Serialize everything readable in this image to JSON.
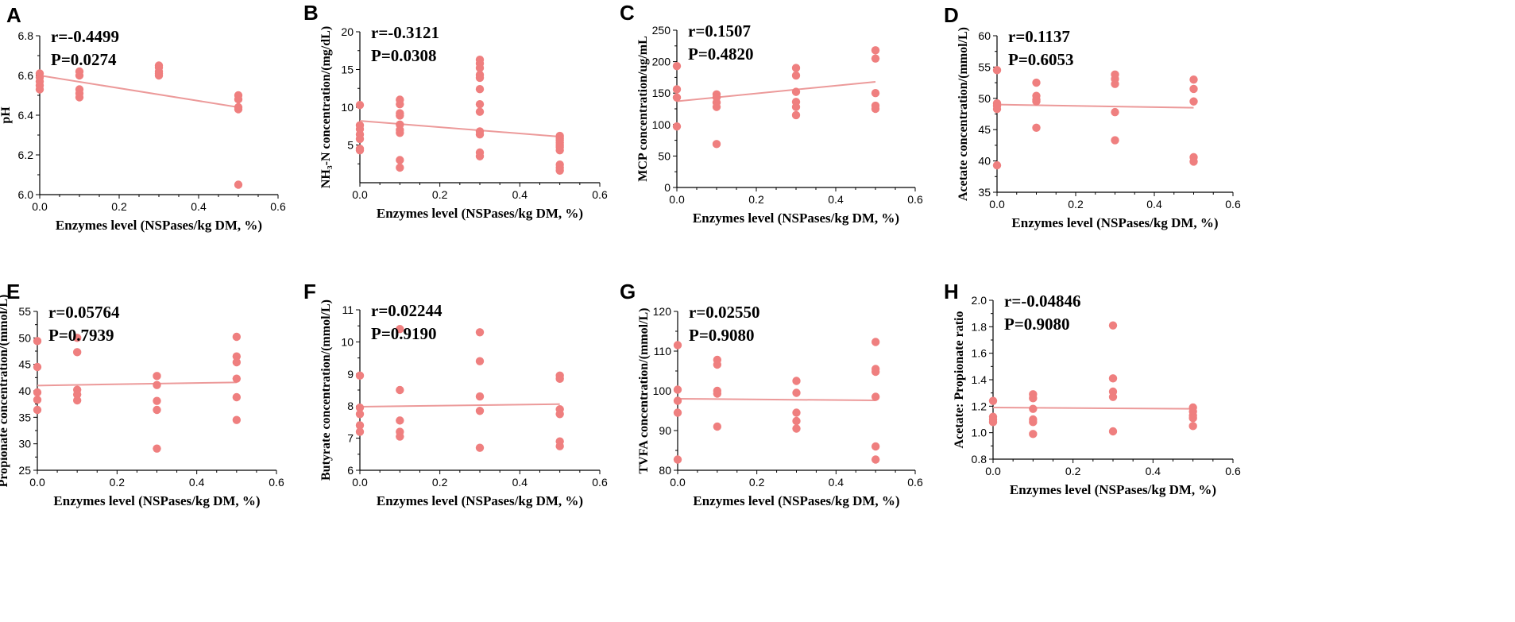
{
  "colors": {
    "point": "#ef7f7f",
    "fit_line": "#ec9a9a",
    "axis": "#000000"
  },
  "chart_data": [
    {
      "letter": "A",
      "type": "scatter",
      "ylabel": "pH",
      "xlabel": "Enzymes level (NSPases/kg DM, %)",
      "r_text": "r=-0.4499",
      "p_text": "P=0.0274",
      "xlim": [
        0,
        0.6
      ],
      "ylim": [
        6.0,
        6.8
      ],
      "xticks": [
        0.0,
        0.2,
        0.4,
        0.6
      ],
      "xtick_labels": [
        "0.0",
        "0.2",
        "0.4",
        "0.6"
      ],
      "yticks": [
        6.0,
        6.2,
        6.4,
        6.6,
        6.8
      ],
      "ytick_labels": [
        "6.0",
        "6.2",
        "6.4",
        "6.6",
        "6.8"
      ],
      "points": [
        [
          0,
          6.61
        ],
        [
          0,
          6.59
        ],
        [
          0,
          6.57
        ],
        [
          0,
          6.55
        ],
        [
          0,
          6.53
        ],
        [
          0.1,
          6.62
        ],
        [
          0.1,
          6.6
        ],
        [
          0.1,
          6.53
        ],
        [
          0.1,
          6.51
        ],
        [
          0.1,
          6.49
        ],
        [
          0.3,
          6.65
        ],
        [
          0.3,
          6.64
        ],
        [
          0.3,
          6.62
        ],
        [
          0.3,
          6.61
        ],
        [
          0.3,
          6.6
        ],
        [
          0.5,
          6.5
        ],
        [
          0.5,
          6.48
        ],
        [
          0.5,
          6.44
        ],
        [
          0.5,
          6.43
        ],
        [
          0.5,
          6.05
        ]
      ],
      "fit": [
        [
          0,
          6.6
        ],
        [
          0.5,
          6.44
        ]
      ]
    },
    {
      "letter": "B",
      "type": "scatter",
      "ylabel": "NH₃-N concentration/(mg/dL)",
      "xlabel": "Enzymes level (NSPases/kg DM, %)",
      "r_text": "r=-0.3121",
      "p_text": "P=0.0308",
      "xlim": [
        0,
        0.6
      ],
      "ylim": [
        0,
        20
      ],
      "xticks": [
        0.0,
        0.2,
        0.4,
        0.6
      ],
      "xtick_labels": [
        "0.0",
        "0.2",
        "0.4",
        "0.6"
      ],
      "yticks": [
        5,
        10,
        15,
        20
      ],
      "ytick_labels": [
        "5",
        "10",
        "15",
        "20"
      ],
      "points": [
        [
          0,
          10.3
        ],
        [
          0,
          7.6
        ],
        [
          0,
          7.1
        ],
        [
          0,
          6.4
        ],
        [
          0,
          5.8
        ],
        [
          0,
          4.5
        ],
        [
          0,
          4.3
        ],
        [
          0.1,
          11.0
        ],
        [
          0.1,
          10.4
        ],
        [
          0.1,
          9.2
        ],
        [
          0.1,
          8.9
        ],
        [
          0.1,
          7.7
        ],
        [
          0.1,
          7.0
        ],
        [
          0.1,
          6.6
        ],
        [
          0.1,
          3.0
        ],
        [
          0.1,
          2.0
        ],
        [
          0.3,
          16.3
        ],
        [
          0.3,
          15.8
        ],
        [
          0.3,
          15.2
        ],
        [
          0.3,
          14.3
        ],
        [
          0.3,
          13.9
        ],
        [
          0.3,
          12.4
        ],
        [
          0.3,
          10.4
        ],
        [
          0.3,
          9.4
        ],
        [
          0.3,
          6.8
        ],
        [
          0.3,
          6.4
        ],
        [
          0.3,
          4.0
        ],
        [
          0.3,
          3.5
        ],
        [
          0.5,
          6.2
        ],
        [
          0.5,
          5.9
        ],
        [
          0.5,
          5.6
        ],
        [
          0.5,
          5.3
        ],
        [
          0.5,
          5.0
        ],
        [
          0.5,
          4.7
        ],
        [
          0.5,
          4.3
        ],
        [
          0.5,
          2.4
        ],
        [
          0.5,
          2.0
        ],
        [
          0.5,
          1.6
        ]
      ],
      "fit": [
        [
          0,
          8.2
        ],
        [
          0.5,
          6.1
        ]
      ]
    },
    {
      "letter": "C",
      "type": "scatter",
      "ylabel": "MCP concentration/ug/mL",
      "xlabel": "Enzymes level (NSPases/kg DM, %)",
      "r_text": "r=0.1507",
      "p_text": "P=0.4820",
      "xlim": [
        0,
        0.6
      ],
      "ylim": [
        0,
        250
      ],
      "xticks": [
        0.0,
        0.2,
        0.4,
        0.6
      ],
      "xtick_labels": [
        "0.0",
        "0.2",
        "0.4",
        "0.6"
      ],
      "yticks": [
        0,
        50,
        100,
        150,
        200,
        250
      ],
      "ytick_labels": [
        "0",
        "50",
        "100",
        "150",
        "200",
        "250"
      ],
      "points": [
        [
          0,
          193
        ],
        [
          0,
          156
        ],
        [
          0,
          143
        ],
        [
          0,
          97
        ],
        [
          0.1,
          148
        ],
        [
          0.1,
          143
        ],
        [
          0.1,
          135
        ],
        [
          0.1,
          128
        ],
        [
          0.1,
          69
        ],
        [
          0.3,
          190
        ],
        [
          0.3,
          178
        ],
        [
          0.3,
          152
        ],
        [
          0.3,
          136
        ],
        [
          0.3,
          128
        ],
        [
          0.3,
          115
        ],
        [
          0.5,
          218
        ],
        [
          0.5,
          205
        ],
        [
          0.5,
          150
        ],
        [
          0.5,
          130
        ],
        [
          0.5,
          125
        ]
      ],
      "fit": [
        [
          0,
          137
        ],
        [
          0.5,
          168
        ]
      ]
    },
    {
      "letter": "D",
      "type": "scatter",
      "ylabel": "Acetate concentration/(mmol/L)",
      "xlabel": "Enzymes level (NSPases/kg DM, %)",
      "r_text": "r=0.1137",
      "p_text": "P=0.6053",
      "xlim": [
        0,
        0.6
      ],
      "ylim": [
        35,
        60
      ],
      "xticks": [
        0.0,
        0.2,
        0.4,
        0.6
      ],
      "xtick_labels": [
        "0.0",
        "0.2",
        "0.4",
        "0.6"
      ],
      "yticks": [
        35,
        40,
        45,
        50,
        55,
        60
      ],
      "ytick_labels": [
        "35",
        "40",
        "45",
        "50",
        "55",
        "60"
      ],
      "points": [
        [
          0,
          54.5
        ],
        [
          0,
          49.2
        ],
        [
          0,
          48.8
        ],
        [
          0,
          48.3
        ],
        [
          0,
          39.3
        ],
        [
          0.1,
          52.5
        ],
        [
          0.1,
          50.4
        ],
        [
          0.1,
          49.8
        ],
        [
          0.1,
          49.5
        ],
        [
          0.1,
          45.3
        ],
        [
          0.3,
          53.8
        ],
        [
          0.3,
          53.1
        ],
        [
          0.3,
          52.3
        ],
        [
          0.3,
          47.8
        ],
        [
          0.3,
          43.3
        ],
        [
          0.5,
          53.0
        ],
        [
          0.5,
          51.5
        ],
        [
          0.5,
          49.5
        ],
        [
          0.5,
          40.6
        ],
        [
          0.5,
          39.9
        ]
      ],
      "fit": [
        [
          0,
          49.0
        ],
        [
          0.5,
          48.5
        ]
      ]
    },
    {
      "letter": "E",
      "type": "scatter",
      "ylabel": "Propionate concentration/(mmol/L)",
      "xlabel": "Enzymes level (NSPases/kg DM, %)",
      "r_text": "r=0.05764",
      "p_text": "P=0.7939",
      "xlim": [
        0,
        0.6
      ],
      "ylim": [
        25,
        55
      ],
      "xticks": [
        0.0,
        0.2,
        0.4,
        0.6
      ],
      "xtick_labels": [
        "0.0",
        "0.2",
        "0.4",
        "0.6"
      ],
      "yticks": [
        25,
        30,
        35,
        40,
        45,
        50,
        55
      ],
      "ytick_labels": [
        "25",
        "30",
        "35",
        "40",
        "45",
        "50",
        "55"
      ],
      "points": [
        [
          0,
          49.4
        ],
        [
          0,
          44.5
        ],
        [
          0,
          39.7
        ],
        [
          0,
          38.3
        ],
        [
          0,
          36.4
        ],
        [
          0.1,
          50.0
        ],
        [
          0.1,
          47.3
        ],
        [
          0.1,
          40.2
        ],
        [
          0.1,
          39.3
        ],
        [
          0.1,
          38.2
        ],
        [
          0.3,
          42.8
        ],
        [
          0.3,
          41.1
        ],
        [
          0.3,
          38.1
        ],
        [
          0.3,
          36.4
        ],
        [
          0.3,
          29.1
        ],
        [
          0.5,
          50.2
        ],
        [
          0.5,
          46.5
        ],
        [
          0.5,
          45.4
        ],
        [
          0.5,
          42.3
        ],
        [
          0.5,
          38.8
        ],
        [
          0.5,
          34.5
        ]
      ],
      "fit": [
        [
          0,
          41.0
        ],
        [
          0.5,
          41.6
        ]
      ]
    },
    {
      "letter": "F",
      "type": "scatter",
      "ylabel": "Butyrate concentration/(mmol/L)",
      "xlabel": "Enzymes level (NSPases/kg DM, %)",
      "r_text": "r=0.02244",
      "p_text": "P=0.9190",
      "xlim": [
        0,
        0.6
      ],
      "ylim": [
        6,
        11
      ],
      "xticks": [
        0.0,
        0.2,
        0.4,
        0.6
      ],
      "xtick_labels": [
        "0.0",
        "0.2",
        "0.4",
        "0.6"
      ],
      "yticks": [
        6,
        7,
        8,
        9,
        10,
        11
      ],
      "ytick_labels": [
        "6",
        "7",
        "8",
        "9",
        "10",
        "11"
      ],
      "points": [
        [
          0,
          8.95
        ],
        [
          0,
          7.95
        ],
        [
          0,
          7.75
        ],
        [
          0,
          7.4
        ],
        [
          0,
          7.2
        ],
        [
          0.1,
          10.4
        ],
        [
          0.1,
          8.5
        ],
        [
          0.1,
          7.55
        ],
        [
          0.1,
          7.2
        ],
        [
          0.1,
          7.05
        ],
        [
          0.3,
          10.3
        ],
        [
          0.3,
          9.4
        ],
        [
          0.3,
          8.3
        ],
        [
          0.3,
          7.85
        ],
        [
          0.3,
          6.7
        ],
        [
          0.5,
          8.95
        ],
        [
          0.5,
          8.85
        ],
        [
          0.5,
          7.9
        ],
        [
          0.5,
          7.75
        ],
        [
          0.5,
          6.9
        ],
        [
          0.5,
          6.75
        ]
      ],
      "fit": [
        [
          0,
          7.98
        ],
        [
          0.5,
          8.06
        ]
      ]
    },
    {
      "letter": "G",
      "type": "scatter",
      "ylabel": "TVFA concentration/(mmol/L)",
      "xlabel": "Enzymes level (NSPases/kg DM, %)",
      "r_text": "r=0.02550",
      "p_text": "P=0.9080",
      "xlim": [
        0,
        0.6
      ],
      "ylim": [
        80,
        120
      ],
      "xticks": [
        0.0,
        0.2,
        0.4,
        0.6
      ],
      "xtick_labels": [
        "0.0",
        "0.2",
        "0.4",
        "0.6"
      ],
      "yticks": [
        80,
        90,
        100,
        110,
        120
      ],
      "ytick_labels": [
        "80",
        "90",
        "100",
        "110",
        "120"
      ],
      "points": [
        [
          0,
          111.5
        ],
        [
          0,
          100.3
        ],
        [
          0,
          97.5
        ],
        [
          0,
          94.5
        ],
        [
          0,
          82.7
        ],
        [
          0.1,
          107.8
        ],
        [
          0.1,
          106.6
        ],
        [
          0.1,
          100.0
        ],
        [
          0.1,
          99.3
        ],
        [
          0.1,
          91.0
        ],
        [
          0.3,
          102.5
        ],
        [
          0.3,
          99.5
        ],
        [
          0.3,
          94.5
        ],
        [
          0.3,
          92.4
        ],
        [
          0.3,
          90.5
        ],
        [
          0.5,
          112.3
        ],
        [
          0.5,
          105.5
        ],
        [
          0.5,
          104.8
        ],
        [
          0.5,
          98.5
        ],
        [
          0.5,
          86.0
        ],
        [
          0.5,
          82.7
        ]
      ],
      "fit": [
        [
          0,
          98.0
        ],
        [
          0.5,
          97.6
        ]
      ]
    },
    {
      "letter": "H",
      "type": "scatter",
      "ylabel": "Acetate: Propionate ratio",
      "xlabel": "Enzymes level (NSPases/kg DM, %)",
      "r_text": "r=-0.04846",
      "p_text": "P=0.9080",
      "xlim": [
        0,
        0.6
      ],
      "ylim": [
        0.8,
        2.0
      ],
      "xticks": [
        0.0,
        0.2,
        0.4,
        0.6
      ],
      "xtick_labels": [
        "0.0",
        "0.2",
        "0.4",
        "0.6"
      ],
      "yticks": [
        0.8,
        1.0,
        1.2,
        1.4,
        1.6,
        1.8,
        2.0
      ],
      "ytick_labels": [
        "0.8",
        "1.0",
        "1.2",
        "1.4",
        "1.6",
        "1.8",
        "2.0"
      ],
      "points": [
        [
          0,
          1.24
        ],
        [
          0,
          1.12
        ],
        [
          0,
          1.1
        ],
        [
          0,
          1.08
        ],
        [
          0.1,
          1.29
        ],
        [
          0.1,
          1.26
        ],
        [
          0.1,
          1.18
        ],
        [
          0.1,
          1.1
        ],
        [
          0.1,
          1.08
        ],
        [
          0.1,
          0.99
        ],
        [
          0.3,
          1.81
        ],
        [
          0.3,
          1.41
        ],
        [
          0.3,
          1.31
        ],
        [
          0.3,
          1.27
        ],
        [
          0.3,
          1.01
        ],
        [
          0.5,
          1.19
        ],
        [
          0.5,
          1.16
        ],
        [
          0.5,
          1.13
        ],
        [
          0.5,
          1.11
        ],
        [
          0.5,
          1.05
        ]
      ],
      "fit": [
        [
          0,
          1.19
        ],
        [
          0.5,
          1.18
        ]
      ]
    }
  ]
}
